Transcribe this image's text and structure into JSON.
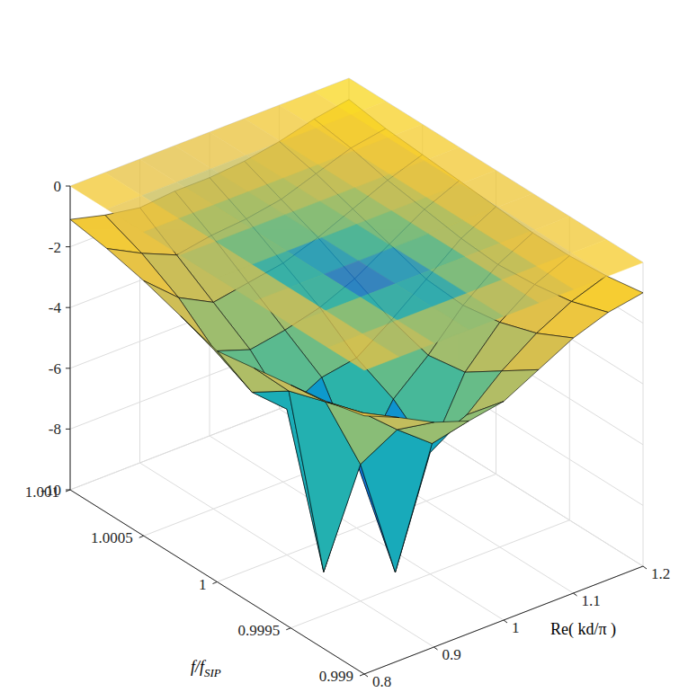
{
  "chart_data": {
    "type": "surface3d",
    "xlabel": "Re( kd/π )",
    "ylabel": {
      "text": "f/f",
      "subscript": "SIP"
    },
    "x": [
      0.8,
      0.85,
      0.9,
      0.95,
      1.0,
      1.05,
      1.1,
      1.15,
      1.2
    ],
    "y": [
      0.999,
      0.99925,
      0.9995,
      0.99975,
      1.0,
      1.00025,
      1.0005,
      1.00075,
      1.001
    ],
    "z": [
      [
        -1.5,
        -2.0,
        -2.6,
        -3.0,
        -2.8,
        -2.2,
        -1.6,
        -1.2,
        -1.0
      ],
      [
        -1.8,
        -2.6,
        -3.6,
        -4.5,
        -4.0,
        -3.0,
        -2.2,
        -1.6,
        -1.2
      ],
      [
        -2.0,
        -3.0,
        -5.5,
        -9.5,
        -6.0,
        -3.8,
        -2.6,
        -1.8,
        -1.3
      ],
      [
        -2.2,
        -3.4,
        -9.8,
        -6.8,
        -5.0,
        -4.0,
        -2.8,
        -1.9,
        -1.3
      ],
      [
        -2.4,
        -4.2,
        -5.2,
        -4.6,
        -4.4,
        -3.6,
        -2.7,
        -1.8,
        -1.2
      ],
      [
        -2.0,
        -3.6,
        -4.0,
        -3.8,
        -3.5,
        -3.0,
        -2.3,
        -1.6,
        -1.1
      ],
      [
        -1.6,
        -2.6,
        -3.2,
        -3.0,
        -2.8,
        -2.4,
        -1.9,
        -1.4,
        -1.0
      ],
      [
        -1.3,
        -1.9,
        -2.4,
        -2.2,
        -2.1,
        -1.9,
        -1.5,
        -1.1,
        -0.9
      ],
      [
        -1.1,
        -1.4,
        -1.6,
        -1.5,
        -1.5,
        -1.4,
        -1.2,
        -0.9,
        -0.7
      ]
    ],
    "xlim": [
      0.8,
      1.2
    ],
    "xticks": [
      0.8,
      0.9,
      1,
      1.1,
      1.2
    ],
    "ylim": [
      0.999,
      1.001
    ],
    "yticks": [
      0.999,
      0.9995,
      1,
      1.0005,
      1.001
    ],
    "zlim": [
      -10,
      0
    ],
    "zticks": [
      -10,
      -8,
      -6,
      -4,
      -2,
      0
    ],
    "grid": true
  }
}
